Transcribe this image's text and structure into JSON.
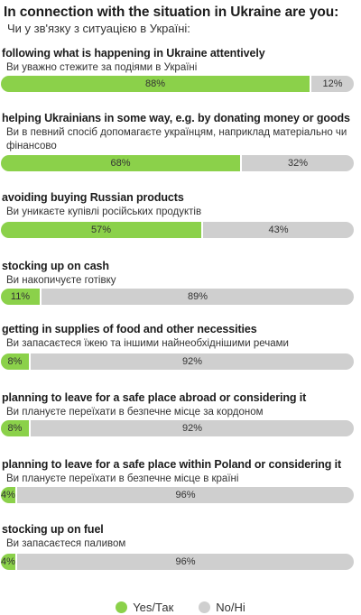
{
  "title": "In connection with the situation in Ukraine are you:",
  "subtitle": "Чи у зв'язку з ситуацією в Україні:",
  "colors": {
    "yes": "#8bd14a",
    "no": "#cfcfcf"
  },
  "legend": {
    "yes": "Yes/Так",
    "no": "No/Ні"
  },
  "chart_data": {
    "type": "bar",
    "stacked": true,
    "orientation": "horizontal",
    "title": "In connection with the situation in Ukraine are you:",
    "subtitle": "Чи у зв'язку з ситуацією в Україні:",
    "xlim": [
      0,
      100
    ],
    "categories": [
      "following what is happening in Ukraine attentively",
      "helping Ukrainians in some way, e.g. by donating money or goods",
      "avoiding buying Russian products",
      "stocking up on cash",
      "getting in supplies of food and other necessities",
      "planning to leave for a safe place abroad or considering it",
      "planning to leave for a safe place within Poland or considering it",
      "stocking up on fuel"
    ],
    "categories_uk": [
      "Ви уважно стежите за подіями в Україні",
      "Ви в певний спосіб допомагаєте українцям, наприклад матеріально чи фінансово",
      "Ви уникаєте купівлі російських продуктів",
      "Ви накопичуєте готівку",
      "Ви запасаєтеся їжею та іншими найнеобхіднішими речами",
      "Ви плануєте переїхати в безпечне місце за кордоном",
      "Ви плануєте переїхати в безпечне місце в країні",
      "Ви запасаєтеся паливом"
    ],
    "series": [
      {
        "name": "Yes/Так",
        "values": [
          88,
          68,
          57,
          11,
          8,
          8,
          4,
          4
        ]
      },
      {
        "name": "No/Ні",
        "values": [
          12,
          32,
          43,
          89,
          92,
          92,
          96,
          96
        ]
      }
    ],
    "value_labels": {
      "yes": [
        "88%",
        "68%",
        "57%",
        "11%",
        "8%",
        "8%",
        "4%",
        "4%"
      ],
      "no": [
        "12%",
        "32%",
        "43%",
        "89%",
        "92%",
        "92%",
        "96%",
        "96%"
      ]
    },
    "legend_position": "bottom-center"
  }
}
